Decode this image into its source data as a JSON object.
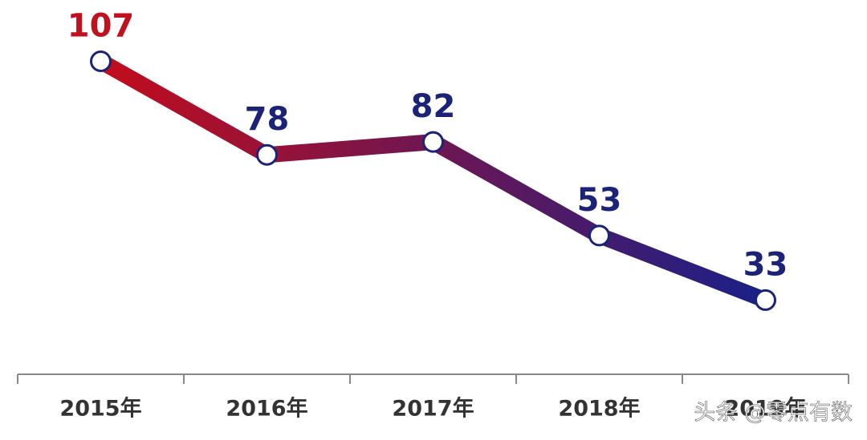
{
  "chart_data": {
    "type": "line",
    "categories": [
      "2015年",
      "2016年",
      "2017年",
      "2018年",
      "2019年"
    ],
    "values": [
      107,
      78,
      82,
      53,
      33
    ],
    "label_colors": [
      "#c0121e",
      "#1b2379",
      "#1b2379",
      "#1b2379",
      "#1b2379"
    ],
    "gradient": [
      "#c20d1c",
      "#1a2088"
    ],
    "ylim": [
      10,
      126
    ],
    "watermark": "头条 @零点有数"
  }
}
